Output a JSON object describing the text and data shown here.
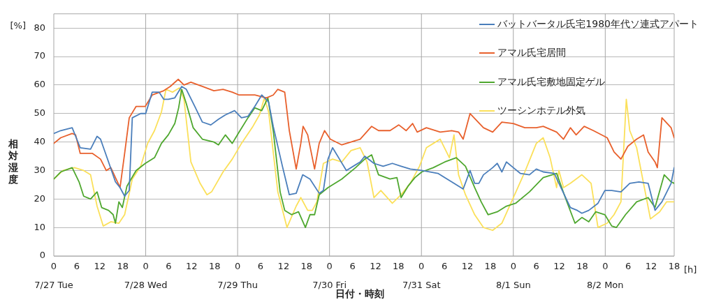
{
  "chart_data": {
    "type": "line",
    "xlabel": "日付・時刻",
    "ylabel": "相対湿度",
    "annotations": [
      "[%]",
      "[h]",
      "7/27 Tue",
      "7/28 Wed",
      "7/29 Thu",
      "7/30 Fri",
      "7/31 Sat",
      "8/1 Sun",
      "8/2 Mon"
    ],
    "xlim": [
      "--07-27T00:00",
      "--08-02T18:00"
    ],
    "xticks": [
      {
        "value": "--07-27T00:00",
        "label": "0"
      },
      {
        "value": "--07-27T06:00",
        "label": "6"
      },
      {
        "value": "--07-27T12:00",
        "label": "12"
      },
      {
        "value": "--07-27T18:00",
        "label": "18"
      },
      {
        "value": "--07-28T00:00",
        "label": "0"
      },
      {
        "value": "--07-28T06:00",
        "label": "6"
      },
      {
        "value": "--07-28T12:00",
        "label": "12"
      },
      {
        "value": "--07-28T18:00",
        "label": "18"
      },
      {
        "value": "--07-29T00:00",
        "label": "0"
      },
      {
        "value": "--07-29T06:00",
        "label": "6"
      },
      {
        "value": "--07-29T12:00",
        "label": "12"
      },
      {
        "value": "--07-29T18:00",
        "label": "18"
      },
      {
        "value": "--07-30T00:00",
        "label": "0"
      },
      {
        "value": "--07-30T06:00",
        "label": "6"
      },
      {
        "value": "--07-30T12:00",
        "label": "12"
      },
      {
        "value": "--07-30T18:00",
        "label": "18"
      },
      {
        "value": "--07-31T00:00",
        "label": "0"
      },
      {
        "value": "--07-31T06:00",
        "label": "6"
      },
      {
        "value": "--07-31T12:00",
        "label": "12"
      },
      {
        "value": "--07-31T18:00",
        "label": "18"
      },
      {
        "value": "--08-01T00:00",
        "label": "0"
      },
      {
        "value": "--08-01T06:00",
        "label": "6"
      },
      {
        "value": "--08-01T12:00",
        "label": "12"
      },
      {
        "value": "--08-01T18:00",
        "label": "18"
      },
      {
        "value": "--08-02T00:00",
        "label": "0"
      },
      {
        "value": "--08-02T06:00",
        "label": "6"
      },
      {
        "value": "--08-02T12:00",
        "label": "12"
      },
      {
        "value": "--08-02T18:00",
        "label": "18"
      }
    ],
    "ylim": [
      0,
      85
    ],
    "yticks": [
      0,
      10,
      20,
      30,
      40,
      50,
      60,
      70,
      80
    ],
    "grid": "y",
    "legend": "top right",
    "marker": "none",
    "line_style": "solid",
    "ref_lines": [
      {
        "axis": "x",
        "value": "--07-28T00:00",
        "color": "#a6a6a6"
      },
      {
        "axis": "x",
        "value": "--07-29T00:00",
        "color": "#a6a6a6"
      },
      {
        "axis": "x",
        "value": "--07-30T00:00",
        "color": "#a6a6a6"
      },
      {
        "axis": "x",
        "value": "--07-31T00:00",
        "color": "#a6a6a6"
      },
      {
        "axis": "x",
        "value": "--08-01T00:00",
        "color": "#a6a6a6"
      },
      {
        "axis": "x",
        "value": "--08-02T00:00",
        "color": "#a6a6a6"
      }
    ],
    "series": [
      {
        "name": "バットバータル氏宅1980年代ソ連式アパート",
        "color": "#4a7ebb",
        "x": [
          "--07-27T00:00",
          "--07-27T01:48",
          "--07-27T04:48",
          "--07-27T06:00",
          "--07-27T06:54",
          "--07-27T09:36",
          "--07-27T11:18",
          "--07-27T12:12",
          "--07-27T14:18",
          "--07-27T16:06",
          "--07-27T17:18",
          "--07-27T18:30",
          "--07-27T19:42",
          "--07-27T20:30",
          "--07-27T22:42",
          "--07-28T00:00",
          "--07-28T01:42",
          "--07-28T03:30",
          "--07-28T04:42",
          "--07-28T05:54",
          "--07-28T07:36",
          "--07-28T09:24",
          "--07-28T10:36",
          "--07-28T13:00",
          "--07-28T14:48",
          "--07-28T17:00",
          "--07-28T19:00",
          "--07-28T20:48",
          "--07-28T23:12",
          "--07-29T01:00",
          "--07-29T02:42",
          "--07-29T04:30",
          "--07-29T06:18",
          "--07-29T08:06",
          "--07-29T09:18",
          "--07-29T11:42",
          "--07-29T13:30",
          "--07-29T15:18",
          "--07-29T17:00",
          "--07-29T18:54",
          "--07-29T21:18",
          "--07-29T22:24",
          "--07-29T23:36",
          "--07-30T00:48",
          "--07-30T02:36",
          "--07-30T04:24",
          "--07-30T08:00",
          "--07-30T09:12",
          "--07-30T11:36",
          "--07-30T14:00",
          "--07-30T16:24",
          "--07-30T18:42",
          "--07-30T21:06",
          "--07-31T00:06",
          "--07-31T04:18",
          "--07-31T07:54",
          "--07-31T10:54",
          "--07-31T12:42",
          "--07-31T13:54",
          "--07-31T15:00",
          "--07-31T16:12",
          "--07-31T18:36",
          "--07-31T19:48",
          "--07-31T21:00",
          "--07-31T22:12",
          "--08-01T00:00",
          "--08-01T01:48",
          "--08-01T04:12",
          "--08-01T06:00",
          "--08-01T07:48",
          "--08-01T10:42",
          "--08-01T11:54",
          "--08-01T14:54",
          "--08-01T16:42",
          "--08-01T17:54",
          "--08-01T19:42",
          "--08-01T22:06",
          "--08-01T23:54",
          "--08-02T01:42",
          "--08-02T04:06",
          "--08-02T06:24",
          "--08-02T08:48",
          "--08-02T11:12",
          "--08-02T13:00",
          "--08-02T14:48",
          "--08-02T17:12",
          "--08-02T18:00"
        ],
        "values": [
          43,
          44,
          45,
          41,
          38,
          37.5,
          42,
          41,
          33,
          26,
          24,
          21,
          23,
          48.5,
          50,
          50,
          57.5,
          57.5,
          55,
          55,
          55.5,
          59.5,
          58.5,
          52,
          47,
          46,
          48,
          49.5,
          51,
          48.5,
          49,
          52.5,
          56.5,
          54,
          45.5,
          31.5,
          21.5,
          22,
          28.5,
          27,
          22,
          23,
          34,
          38,
          34,
          30,
          33,
          35,
          32.5,
          31.5,
          32.5,
          31.5,
          30.5,
          30,
          29,
          26,
          23.5,
          30,
          25.5,
          25.5,
          28.5,
          31,
          32.5,
          29.5,
          33,
          31,
          29,
          28.5,
          30.5,
          29.5,
          29,
          25.5,
          17,
          16,
          15,
          16,
          18.5,
          23,
          23,
          22.5,
          25.5,
          26,
          25.5,
          16,
          19,
          25.5,
          31
        ]
      },
      {
        "name": "アマル氏宅居間",
        "color": "#e8602c",
        "x": [
          "--07-27T00:00",
          "--07-27T01:48",
          "--07-27T04:48",
          "--07-27T05:42",
          "--07-27T06:54",
          "--07-27T10:06",
          "--07-27T12:12",
          "--07-27T13:42",
          "--07-27T14:54",
          "--07-27T17:18",
          "--07-27T18:30",
          "--07-27T19:42",
          "--07-27T21:30",
          "--07-27T23:54",
          "--07-28T01:42",
          "--07-28T04:42",
          "--07-28T06:24",
          "--07-28T08:30",
          "--07-28T10:00",
          "--07-28T11:48",
          "--07-28T14:48",
          "--07-28T17:48",
          "--07-28T20:12",
          "--07-28T22:36",
          "--07-29T00:24",
          "--07-29T04:30",
          "--07-29T07:30",
          "--07-29T09:18",
          "--07-29T10:30",
          "--07-29T12:18",
          "--07-29T13:30",
          "--07-29T15:18",
          "--07-29T16:30",
          "--07-29T17:06",
          "--07-29T18:18",
          "--07-29T20:06",
          "--07-29T21:18",
          "--07-29T22:42",
          "--07-30T00:12",
          "--07-30T03:12",
          "--07-30T05:36",
          "--07-30T08:00",
          "--07-30T11:00",
          "--07-30T12:48",
          "--07-30T15:48",
          "--07-30T18:06",
          "--07-30T20:00",
          "--07-30T21:42",
          "--07-30T22:54",
          "--07-31T01:18",
          "--07-31T04:54",
          "--07-31T07:54",
          "--07-31T09:42",
          "--07-31T10:54",
          "--07-31T12:42",
          "--07-31T16:12",
          "--07-31T18:36",
          "--07-31T21:00",
          "--08-01T00:00",
          "--08-01T03:00",
          "--08-01T06:00",
          "--08-01T07:48",
          "--08-01T11:18",
          "--08-01T13:06",
          "--08-01T14:54",
          "--08-01T16:24",
          "--08-01T18:30",
          "--08-01T20:54",
          "--08-02T00:30",
          "--08-02T02:18",
          "--08-02T04:06",
          "--08-02T05:54",
          "--08-02T08:12",
          "--08-02T10:00",
          "--08-02T11:12",
          "--08-02T13:00",
          "--08-02T13:36",
          "--08-02T14:48",
          "--08-02T17:12",
          "--08-02T18:00"
        ],
        "values": [
          39.5,
          41.5,
          43,
          42.5,
          36,
          36,
          34,
          30,
          31,
          24,
          36,
          48.5,
          52.5,
          52.5,
          56.5,
          58,
          59.5,
          62,
          60,
          61,
          59.5,
          58,
          58.5,
          57.5,
          56.5,
          56.5,
          55.5,
          56.5,
          58.5,
          57.5,
          44,
          30.5,
          39.5,
          45.5,
          42.5,
          30.5,
          39.5,
          44,
          41,
          39,
          40,
          41,
          45.5,
          44,
          44,
          46,
          44,
          46.5,
          43.5,
          45,
          43.5,
          44,
          43.5,
          41,
          50,
          45,
          43.5,
          47,
          46.5,
          45,
          45,
          45.5,
          43.5,
          41,
          45,
          42.5,
          45.5,
          44,
          41.5,
          36.5,
          34,
          38.5,
          41,
          42.5,
          36.5,
          33,
          31,
          48.5,
          45,
          41.5
        ]
      },
      {
        "name": "アマル氏宅敷地固定ゲル",
        "color": "#4ea72e",
        "x": [
          "--07-27T00:00",
          "--07-27T01:48",
          "--07-27T04:48",
          "--07-27T06:36",
          "--07-27T07:48",
          "--07-27T09:36",
          "--07-27T11:18",
          "--07-27T12:30",
          "--07-27T14:18",
          "--07-27T15:30",
          "--07-27T16:06",
          "--07-27T17:00",
          "--07-27T17:54",
          "--07-27T19:06",
          "--07-27T21:30",
          "--07-27T23:54",
          "--07-28T02:18",
          "--07-28T04:06",
          "--07-28T05:54",
          "--07-28T07:36",
          "--07-28T08:36",
          "--07-28T09:24",
          "--07-28T10:36",
          "--07-28T12:24",
          "--07-28T14:48",
          "--07-28T17:48",
          "--07-28T19:00",
          "--07-28T20:48",
          "--07-28T22:36",
          "--07-29T00:24",
          "--07-29T02:42",
          "--07-29T04:30",
          "--07-29T06:18",
          "--07-29T07:54",
          "--07-29T09:18",
          "--07-29T11:06",
          "--07-29T12:18",
          "--07-29T14:06",
          "--07-29T15:54",
          "--07-29T17:42",
          "--07-29T18:54",
          "--07-29T20:06",
          "--07-29T21:18",
          "--07-29T23:36",
          "--07-30T03:12",
          "--07-30T06:48",
          "--07-30T09:12",
          "--07-30T11:00",
          "--07-30T12:48",
          "--07-30T15:48",
          "--07-30T17:36",
          "--07-30T18:42",
          "--07-30T20:30",
          "--07-30T22:18",
          "--07-31T00:06",
          "--07-31T03:06",
          "--07-31T06:06",
          "--07-31T09:06",
          "--07-31T11:30",
          "--07-31T13:54",
          "--07-31T15:36",
          "--07-31T17:24",
          "--07-31T19:48",
          "--07-31T22:12",
          "--08-01T00:36",
          "--08-01T04:12",
          "--08-01T07:48",
          "--08-01T11:18",
          "--08-01T13:42",
          "--08-01T16:06",
          "--08-01T17:54",
          "--08-01T19:42",
          "--08-01T21:30",
          "--08-01T23:54",
          "--08-02T01:42",
          "--08-02T02:54",
          "--08-02T05:18",
          "--08-02T08:12",
          "--08-02T11:12",
          "--08-02T13:00",
          "--08-02T15:24",
          "--08-02T17:12",
          "--08-02T18:00"
        ],
        "values": [
          27,
          29.5,
          31,
          26,
          21,
          20,
          22.5,
          17,
          16,
          14.5,
          11.5,
          19,
          17,
          24.5,
          30,
          32.5,
          34.5,
          39.5,
          42.5,
          46.5,
          52,
          58.5,
          53.5,
          45,
          41,
          40,
          39,
          42.5,
          39.5,
          43.5,
          48.5,
          52,
          51,
          55.5,
          44,
          22.5,
          16,
          14.5,
          15.5,
          10,
          14.5,
          14.5,
          21.5,
          24,
          27,
          31,
          34,
          35.5,
          28.5,
          27,
          27.5,
          20.5,
          24.5,
          27.5,
          29.5,
          31,
          33,
          34.5,
          31.5,
          24,
          19,
          14.5,
          15.5,
          17.5,
          18.5,
          22.5,
          27.5,
          29,
          20,
          11.5,
          13.5,
          12,
          15.5,
          14.5,
          10.5,
          10,
          14.5,
          19,
          20.5,
          17,
          28.5,
          26,
          25.5
        ]
      },
      {
        "name": "ツーシンホテル外気",
        "color": "#fbe05a",
        "x": [
          "--07-27T00:00",
          "--07-27T02:24",
          "--07-27T05:24",
          "--07-27T07:48",
          "--07-27T09:36",
          "--07-27T11:18",
          "--07-27T12:54",
          "--07-27T14:54",
          "--07-27T17:00",
          "--07-27T18:30",
          "--07-27T20:30",
          "--07-27T22:42",
          "--07-28T00:30",
          "--07-28T02:18",
          "--07-28T04:06",
          "--07-28T05:18",
          "--07-28T07:00",
          "--07-28T08:48",
          "--07-28T10:00",
          "--07-28T11:48",
          "--07-28T14:12",
          "--07-28T16:00",
          "--07-28T17:12",
          "--07-28T20:12",
          "--07-28T22:36",
          "--07-29T01:00",
          "--07-29T04:00",
          "--07-29T05:42",
          "--07-29T07:00",
          "--07-29T08:06",
          "--07-29T10:30",
          "--07-29T12:54",
          "--07-29T15:18",
          "--07-29T16:30",
          "--07-29T18:18",
          "--07-29T19:30",
          "--07-29T20:42",
          "--07-29T22:24",
          "--07-30T00:48",
          "--07-30T03:12",
          "--07-30T05:36",
          "--07-30T08:00",
          "--07-30T09:48",
          "--07-30T11:36",
          "--07-30T13:24",
          "--07-30T16:24",
          "--07-30T18:42",
          "--07-30T21:06",
          "--07-30T23:30",
          "--07-31T01:18",
          "--07-31T03:42",
          "--07-31T04:54",
          "--07-31T07:18",
          "--07-31T08:30",
          "--07-31T09:42",
          "--07-31T11:30",
          "--07-31T13:54",
          "--07-31T16:12",
          "--07-31T18:36",
          "--07-31T21:00",
          "--08-01T00:00",
          "--08-01T03:00",
          "--08-01T06:00",
          "--08-01T07:48",
          "--08-01T09:36",
          "--08-01T11:18",
          "--08-01T11:54",
          "--08-01T13:06",
          "--08-01T14:54",
          "--08-01T17:54",
          "--08-01T20:18",
          "--08-01T22:06",
          "--08-02T00:30",
          "--08-02T02:18",
          "--08-02T04:06",
          "--08-02T05:30",
          "--08-02T06:24",
          "--08-02T08:12",
          "--08-02T10:00",
          "--08-02T11:48",
          "--08-02T14:12",
          "--08-02T16:00",
          "--08-02T18:00"
        ],
        "values": [
          27,
          30,
          31,
          30,
          28.5,
          17.5,
          10.5,
          12,
          11.5,
          14.5,
          27,
          31.5,
          39.5,
          44,
          50.5,
          58.5,
          57.5,
          59,
          55,
          33,
          25.5,
          21.5,
          22.5,
          29.5,
          34,
          39.5,
          45.5,
          49.5,
          55.5,
          50.5,
          22.5,
          10,
          17.5,
          20.5,
          16,
          16,
          19,
          32.5,
          34,
          33,
          37,
          38,
          33,
          20.5,
          23,
          18.5,
          21.5,
          25.5,
          31.5,
          38,
          40,
          41,
          34.5,
          42.5,
          28.5,
          21.5,
          14.5,
          10,
          9,
          11.5,
          20.5,
          29.5,
          39.5,
          41.5,
          34.5,
          24,
          30,
          24,
          25.5,
          28.5,
          25.5,
          10,
          11.5,
          14.5,
          19,
          55,
          44,
          38,
          25.5,
          13,
          15.5,
          19,
          19
        ]
      }
    ]
  }
}
